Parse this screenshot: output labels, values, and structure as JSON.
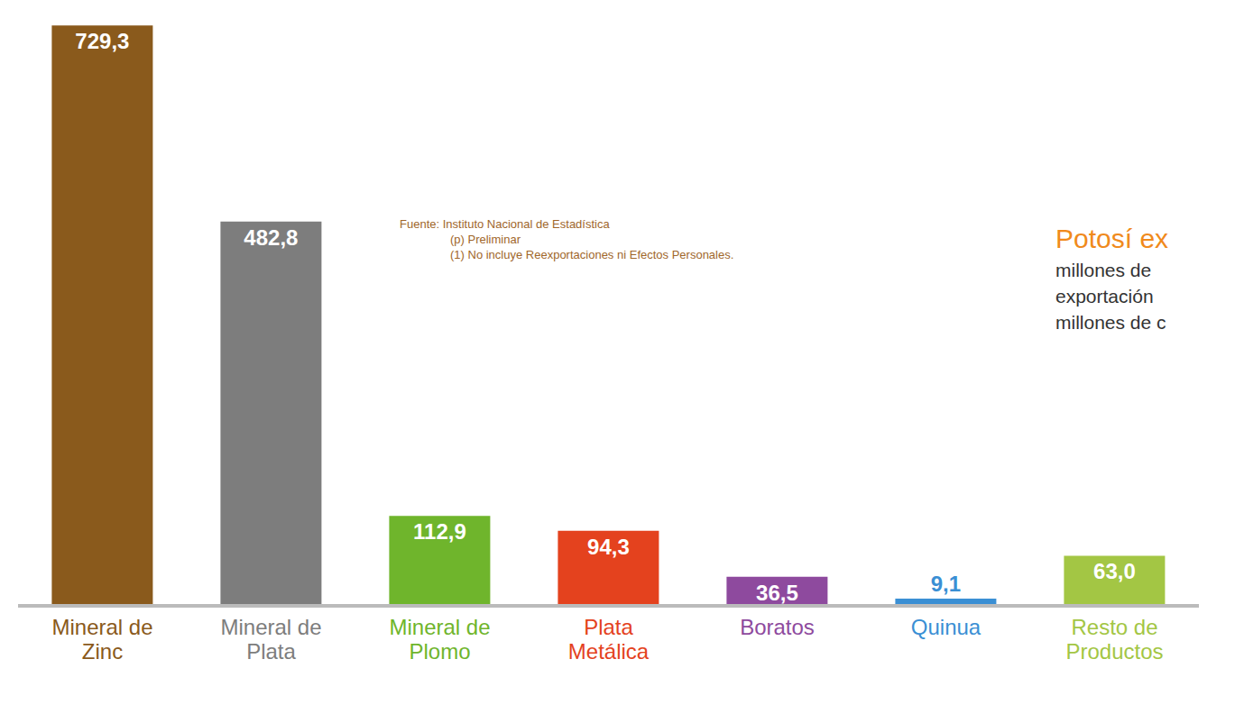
{
  "chart_data": {
    "type": "bar",
    "categories": [
      "Mineral de Zinc",
      "Mineral de Plata",
      "Mineral de Plomo",
      "Plata Metálica",
      "Boratos",
      "Quinua",
      "Resto de Productos"
    ],
    "values": [
      729.3,
      482.8,
      112.9,
      94.3,
      36.5,
      9.1,
      63.0
    ],
    "value_labels": [
      "729,3",
      "482,8",
      "112,9",
      "94,3",
      "36,5",
      "9,1",
      "63,0"
    ],
    "colors": [
      "#8a5a1c",
      "#7d7d7d",
      "#6fb52c",
      "#e4421e",
      "#8e4a9e",
      "#3a8fd4",
      "#a3c644"
    ],
    "ylim": [
      0,
      750
    ],
    "data_labels": true,
    "tick_labels": "x",
    "grid": false,
    "annotations": [
      "Fuente: Instituto Nacional de Estadística",
      "(p) Preliminar",
      "(1) No incluye Reexportaciones ni Efectos Personales.",
      "Potosí ex",
      "millones de",
      "exportación",
      "millones de c"
    ]
  }
}
